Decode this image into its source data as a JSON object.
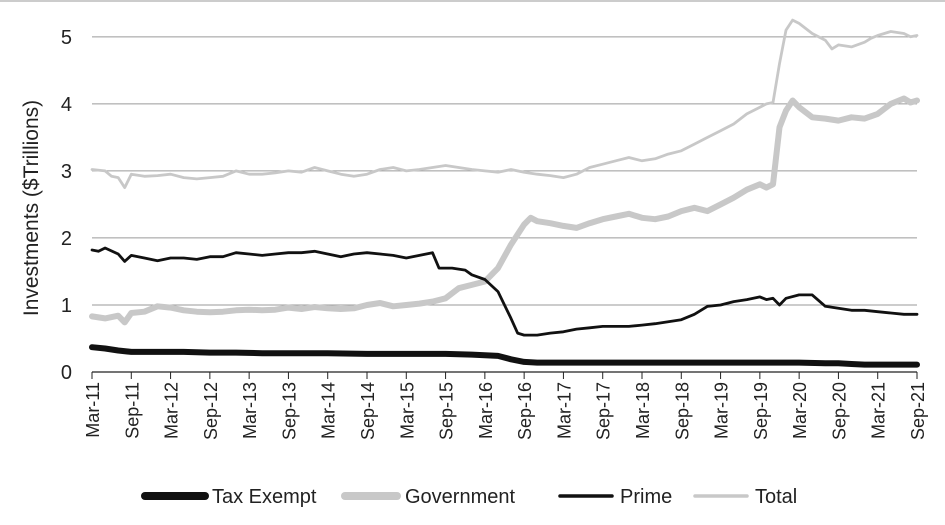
{
  "chart_data": {
    "type": "line",
    "ylabel": "Investments ($Trillions)",
    "xlabel": "",
    "ylim": [
      0,
      5.4
    ],
    "yticks": [
      0,
      1,
      2,
      3,
      4,
      5
    ],
    "grid": "horizontal",
    "legend_position": "bottom",
    "x_tick_labels": [
      "Mar-11",
      "Sep-11",
      "Mar-12",
      "Sep-12",
      "Mar-13",
      "Sep-13",
      "Mar-14",
      "Sep-14",
      "Mar-15",
      "Sep-15",
      "Mar-16",
      "Sep-16",
      "Mar-17",
      "Sep-17",
      "Mar-18",
      "Sep-18",
      "Mar-19",
      "Sep-19",
      "Mar-20",
      "Sep-20",
      "Mar-21",
      "Sep-21"
    ],
    "series": [
      {
        "name": "Tax Exempt",
        "color": "#111111",
        "style": "thick",
        "points": [
          [
            0,
            0.37
          ],
          [
            2,
            0.35
          ],
          [
            4,
            0.32
          ],
          [
            6,
            0.3
          ],
          [
            10,
            0.3
          ],
          [
            14,
            0.3
          ],
          [
            18,
            0.29
          ],
          [
            22,
            0.29
          ],
          [
            26,
            0.28
          ],
          [
            30,
            0.28
          ],
          [
            36,
            0.28
          ],
          [
            42,
            0.27
          ],
          [
            48,
            0.27
          ],
          [
            54,
            0.27
          ],
          [
            58,
            0.26
          ],
          [
            60,
            0.25
          ],
          [
            62,
            0.24
          ],
          [
            64,
            0.19
          ],
          [
            66,
            0.15
          ],
          [
            68,
            0.14
          ],
          [
            72,
            0.14
          ],
          [
            84,
            0.14
          ],
          [
            96,
            0.14
          ],
          [
            108,
            0.14
          ],
          [
            112,
            0.13
          ],
          [
            114,
            0.13
          ],
          [
            116,
            0.12
          ],
          [
            118,
            0.11
          ],
          [
            126,
            0.11
          ]
        ]
      },
      {
        "name": "Government",
        "color": "#c8c8c8",
        "style": "thick",
        "points": [
          [
            0,
            0.83
          ],
          [
            2,
            0.8
          ],
          [
            4,
            0.84
          ],
          [
            5,
            0.74
          ],
          [
            6,
            0.88
          ],
          [
            8,
            0.9
          ],
          [
            10,
            0.98
          ],
          [
            12,
            0.96
          ],
          [
            14,
            0.92
          ],
          [
            16,
            0.9
          ],
          [
            18,
            0.89
          ],
          [
            20,
            0.9
          ],
          [
            22,
            0.92
          ],
          [
            24,
            0.93
          ],
          [
            26,
            0.92
          ],
          [
            28,
            0.93
          ],
          [
            30,
            0.96
          ],
          [
            32,
            0.94
          ],
          [
            34,
            0.97
          ],
          [
            36,
            0.95
          ],
          [
            38,
            0.94
          ],
          [
            40,
            0.95
          ],
          [
            42,
            1.0
          ],
          [
            44,
            1.03
          ],
          [
            46,
            0.98
          ],
          [
            48,
            1.0
          ],
          [
            50,
            1.02
          ],
          [
            52,
            1.05
          ],
          [
            54,
            1.1
          ],
          [
            56,
            1.25
          ],
          [
            58,
            1.3
          ],
          [
            60,
            1.35
          ],
          [
            62,
            1.55
          ],
          [
            64,
            1.9
          ],
          [
            66,
            2.2
          ],
          [
            67,
            2.3
          ],
          [
            68,
            2.25
          ],
          [
            70,
            2.22
          ],
          [
            72,
            2.18
          ],
          [
            74,
            2.15
          ],
          [
            76,
            2.22
          ],
          [
            78,
            2.28
          ],
          [
            80,
            2.32
          ],
          [
            82,
            2.36
          ],
          [
            84,
            2.3
          ],
          [
            86,
            2.28
          ],
          [
            88,
            2.32
          ],
          [
            90,
            2.4
          ],
          [
            92,
            2.45
          ],
          [
            94,
            2.4
          ],
          [
            96,
            2.5
          ],
          [
            98,
            2.6
          ],
          [
            100,
            2.72
          ],
          [
            102,
            2.8
          ],
          [
            103,
            2.75
          ],
          [
            104,
            2.8
          ],
          [
            105,
            3.65
          ],
          [
            106,
            3.9
          ],
          [
            107,
            4.05
          ],
          [
            108,
            3.95
          ],
          [
            110,
            3.8
          ],
          [
            112,
            3.78
          ],
          [
            114,
            3.75
          ],
          [
            116,
            3.8
          ],
          [
            118,
            3.78
          ],
          [
            120,
            3.85
          ],
          [
            122,
            4.0
          ],
          [
            124,
            4.08
          ],
          [
            125,
            4.02
          ],
          [
            126,
            4.05
          ]
        ]
      },
      {
        "name": "Prime",
        "color": "#111111",
        "style": "thin",
        "points": [
          [
            0,
            1.82
          ],
          [
            1,
            1.8
          ],
          [
            2,
            1.85
          ],
          [
            4,
            1.76
          ],
          [
            5,
            1.65
          ],
          [
            6,
            1.74
          ],
          [
            8,
            1.7
          ],
          [
            10,
            1.66
          ],
          [
            12,
            1.7
          ],
          [
            14,
            1.7
          ],
          [
            16,
            1.68
          ],
          [
            18,
            1.72
          ],
          [
            20,
            1.72
          ],
          [
            22,
            1.78
          ],
          [
            24,
            1.76
          ],
          [
            26,
            1.74
          ],
          [
            28,
            1.76
          ],
          [
            30,
            1.78
          ],
          [
            32,
            1.78
          ],
          [
            34,
            1.8
          ],
          [
            36,
            1.76
          ],
          [
            38,
            1.72
          ],
          [
            40,
            1.76
          ],
          [
            42,
            1.78
          ],
          [
            44,
            1.76
          ],
          [
            46,
            1.74
          ],
          [
            48,
            1.7
          ],
          [
            50,
            1.74
          ],
          [
            52,
            1.78
          ],
          [
            53,
            1.55
          ],
          [
            55,
            1.55
          ],
          [
            57,
            1.52
          ],
          [
            58,
            1.45
          ],
          [
            60,
            1.38
          ],
          [
            62,
            1.2
          ],
          [
            64,
            0.8
          ],
          [
            65,
            0.58
          ],
          [
            66,
            0.55
          ],
          [
            68,
            0.55
          ],
          [
            70,
            0.58
          ],
          [
            72,
            0.6
          ],
          [
            74,
            0.64
          ],
          [
            76,
            0.66
          ],
          [
            78,
            0.68
          ],
          [
            80,
            0.68
          ],
          [
            82,
            0.68
          ],
          [
            84,
            0.7
          ],
          [
            86,
            0.72
          ],
          [
            88,
            0.75
          ],
          [
            90,
            0.78
          ],
          [
            92,
            0.86
          ],
          [
            94,
            0.98
          ],
          [
            96,
            1.0
          ],
          [
            98,
            1.05
          ],
          [
            100,
            1.08
          ],
          [
            102,
            1.12
          ],
          [
            103,
            1.08
          ],
          [
            104,
            1.1
          ],
          [
            105,
            1.0
          ],
          [
            106,
            1.1
          ],
          [
            108,
            1.15
          ],
          [
            110,
            1.15
          ],
          [
            112,
            0.98
          ],
          [
            114,
            0.95
          ],
          [
            116,
            0.92
          ],
          [
            118,
            0.92
          ],
          [
            120,
            0.9
          ],
          [
            122,
            0.88
          ],
          [
            124,
            0.86
          ],
          [
            126,
            0.86
          ]
        ]
      },
      {
        "name": "Total",
        "color": "#c8c8c8",
        "style": "thin",
        "points": [
          [
            0,
            3.02
          ],
          [
            2,
            3.0
          ],
          [
            3,
            2.92
          ],
          [
            4,
            2.9
          ],
          [
            5,
            2.75
          ],
          [
            6,
            2.95
          ],
          [
            8,
            2.92
          ],
          [
            10,
            2.93
          ],
          [
            12,
            2.95
          ],
          [
            14,
            2.9
          ],
          [
            16,
            2.88
          ],
          [
            18,
            2.9
          ],
          [
            20,
            2.92
          ],
          [
            22,
            3.0
          ],
          [
            24,
            2.95
          ],
          [
            26,
            2.95
          ],
          [
            28,
            2.97
          ],
          [
            30,
            3.0
          ],
          [
            32,
            2.98
          ],
          [
            34,
            3.05
          ],
          [
            36,
            3.0
          ],
          [
            38,
            2.95
          ],
          [
            40,
            2.92
          ],
          [
            42,
            2.95
          ],
          [
            44,
            3.02
          ],
          [
            46,
            3.05
          ],
          [
            48,
            3.0
          ],
          [
            50,
            3.02
          ],
          [
            52,
            3.05
          ],
          [
            54,
            3.08
          ],
          [
            56,
            3.05
          ],
          [
            58,
            3.02
          ],
          [
            60,
            3.0
          ],
          [
            62,
            2.98
          ],
          [
            64,
            3.02
          ],
          [
            66,
            2.98
          ],
          [
            68,
            2.95
          ],
          [
            70,
            2.93
          ],
          [
            72,
            2.9
          ],
          [
            74,
            2.95
          ],
          [
            76,
            3.05
          ],
          [
            78,
            3.1
          ],
          [
            80,
            3.15
          ],
          [
            82,
            3.2
          ],
          [
            84,
            3.15
          ],
          [
            86,
            3.18
          ],
          [
            88,
            3.25
          ],
          [
            90,
            3.3
          ],
          [
            92,
            3.4
          ],
          [
            94,
            3.5
          ],
          [
            96,
            3.6
          ],
          [
            98,
            3.7
          ],
          [
            100,
            3.85
          ],
          [
            102,
            3.95
          ],
          [
            103,
            4.0
          ],
          [
            104,
            4.02
          ],
          [
            105,
            4.6
          ],
          [
            106,
            5.1
          ],
          [
            107,
            5.25
          ],
          [
            108,
            5.2
          ],
          [
            110,
            5.05
          ],
          [
            112,
            4.95
          ],
          [
            113,
            4.82
          ],
          [
            114,
            4.88
          ],
          [
            116,
            4.85
          ],
          [
            118,
            4.92
          ],
          [
            119,
            4.98
          ],
          [
            120,
            5.02
          ],
          [
            122,
            5.08
          ],
          [
            124,
            5.05
          ],
          [
            125,
            5.0
          ],
          [
            126,
            5.02
          ]
        ]
      }
    ]
  }
}
